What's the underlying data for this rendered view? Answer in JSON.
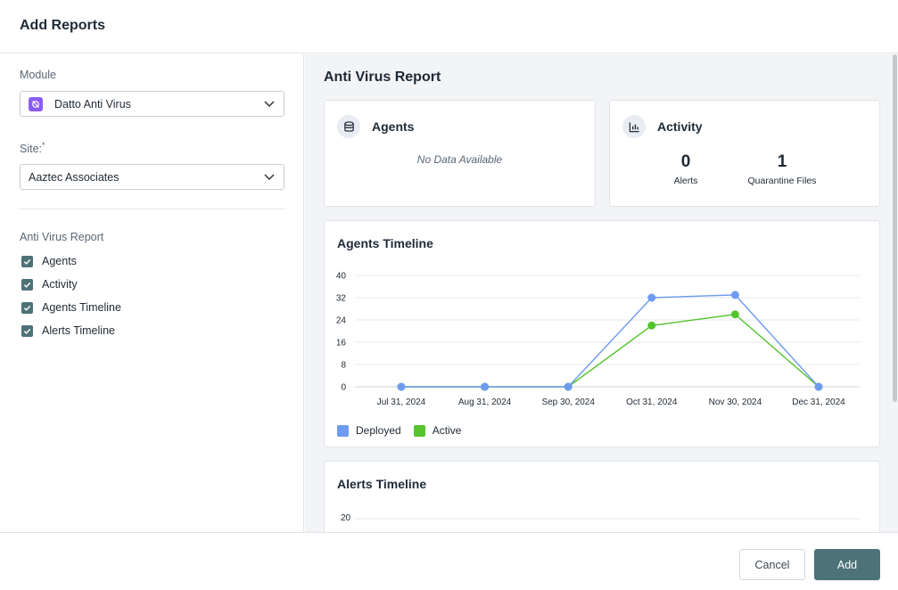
{
  "modal": {
    "title": "Add Reports"
  },
  "form": {
    "module_label": "Module",
    "module_value": "Datto Anti Virus",
    "site_label": "Site:",
    "site_required_mark": "*",
    "site_value": "Aaztec Associates",
    "section_title": "Anti Virus Report",
    "options": [
      {
        "label": "Agents",
        "checked": true
      },
      {
        "label": "Activity",
        "checked": true
      },
      {
        "label": "Agents Timeline",
        "checked": true
      },
      {
        "label": "Alerts Timeline",
        "checked": true
      }
    ]
  },
  "report": {
    "title": "Anti Virus Report",
    "agents_card": {
      "title": "Agents",
      "empty_text": "No Data Available"
    },
    "activity_card": {
      "title": "Activity",
      "stats": [
        {
          "value": "0",
          "label": "Alerts"
        },
        {
          "value": "1",
          "label": "Quarantine Files"
        }
      ]
    },
    "agents_timeline": {
      "title": "Agents Timeline"
    },
    "alerts_timeline": {
      "title": "Alerts Timeline",
      "first_tick": "20"
    }
  },
  "chart_data": [
    {
      "type": "line",
      "title": "Agents Timeline",
      "categories": [
        "Jul 31, 2024",
        "Aug 31, 2024",
        "Sep 30, 2024",
        "Oct 31, 2024",
        "Nov 30, 2024",
        "Dec 31, 2024"
      ],
      "series": [
        {
          "name": "Deployed",
          "color": "#6d9bf1",
          "values": [
            0,
            0,
            0,
            32,
            33,
            0
          ]
        },
        {
          "name": "Active",
          "color": "#55c42e",
          "values": [
            0,
            0,
            0,
            22,
            26,
            0
          ]
        }
      ],
      "yticks": [
        "0",
        "8",
        "16",
        "24",
        "32",
        "40"
      ],
      "ylim": [
        0,
        40
      ],
      "legend": "bottom-left",
      "grid": true
    },
    {
      "type": "line",
      "title": "Alerts Timeline",
      "yticks_visible": [
        "20"
      ]
    }
  ],
  "footer": {
    "cancel_label": "Cancel",
    "add_label": "Add"
  },
  "colors": {
    "primary": "#4d7278",
    "module_badge": "#8a5cf6",
    "deployed": "#6d9bf1",
    "active": "#55c42e"
  }
}
